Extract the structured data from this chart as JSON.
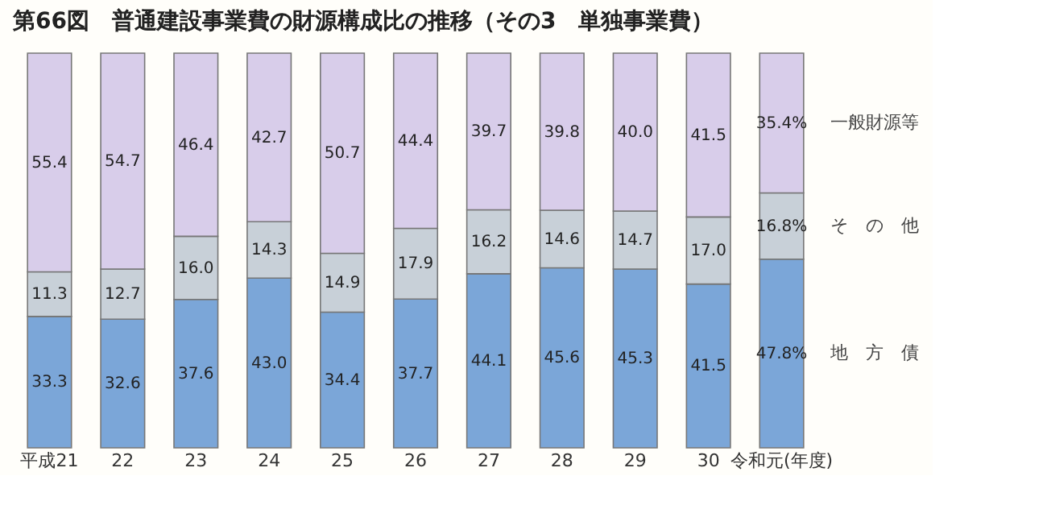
{
  "chart_data": {
    "type": "bar",
    "stacked": true,
    "title": "第66図　普通建設事業費の財源構成比の推移（その3　単独事業費）",
    "categories": [
      "平成21",
      "22",
      "23",
      "24",
      "25",
      "26",
      "27",
      "28",
      "29",
      "30",
      "令和元(年度)"
    ],
    "ylim": [
      0,
      100
    ],
    "tick_labels": "x",
    "grid": false,
    "legend": false,
    "series": [
      {
        "name": "地　方　債",
        "color": "#7ba6d8",
        "values": [
          33.3,
          32.6,
          37.6,
          43.0,
          34.4,
          37.7,
          44.1,
          45.6,
          45.3,
          41.5,
          47.8
        ],
        "value_labels": [
          "33.3",
          "32.6",
          "37.6",
          "43.0",
          "34.4",
          "37.7",
          "44.1",
          "45.6",
          "45.3",
          "41.5",
          "47.8%"
        ]
      },
      {
        "name": "そ　の　他",
        "color": "#c8d0d8",
        "values": [
          11.3,
          12.7,
          16.0,
          14.3,
          14.9,
          17.9,
          16.2,
          14.6,
          14.7,
          17.0,
          16.8
        ],
        "value_labels": [
          "11.3",
          "12.7",
          "16.0",
          "14.3",
          "14.9",
          "17.9",
          "16.2",
          "14.6",
          "14.7",
          "17.0",
          "16.8%"
        ]
      },
      {
        "name": "一般財源等",
        "color": "#d8cdea",
        "values": [
          55.4,
          54.7,
          46.4,
          42.7,
          50.7,
          44.4,
          39.7,
          39.8,
          40.0,
          41.5,
          35.4
        ],
        "value_labels": [
          "55.4",
          "54.7",
          "46.4",
          "42.7",
          "50.7",
          "44.4",
          "39.7",
          "39.8",
          "40.0",
          "41.5",
          "35.4%"
        ]
      }
    ]
  }
}
